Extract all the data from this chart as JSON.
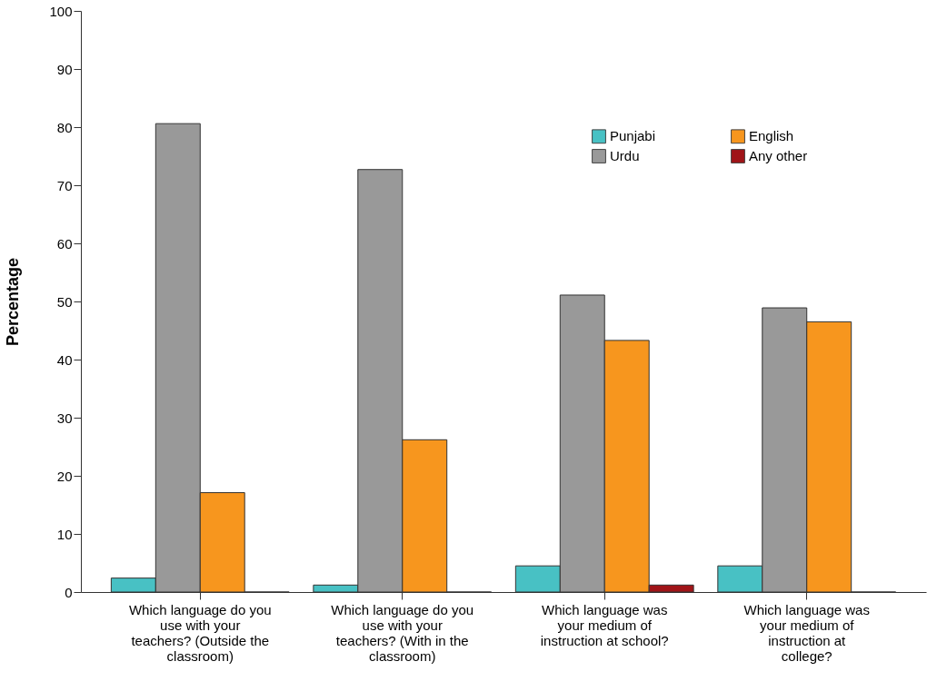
{
  "chart_data": {
    "type": "bar",
    "ylabel": "Percentage",
    "categories": [
      "Which language do you use with your teachers? (Outside the classroom)",
      "Which language do you use with your teachers? (With in the classroom)",
      "Which language was your medium of instruction at school?",
      "Which language was your medium of instruction at college?"
    ],
    "series": [
      {
        "name": "Punjabi",
        "color": "#48c1c4",
        "values": [
          2.4,
          1.2,
          4.5,
          4.5
        ]
      },
      {
        "name": "Urdu",
        "color": "#999999",
        "values": [
          80.6,
          72.7,
          51.1,
          48.9
        ]
      },
      {
        "name": "English",
        "color": "#f7961e",
        "values": [
          17.1,
          26.2,
          43.3,
          46.5
        ]
      },
      {
        "name": "Any other",
        "color": "#a01418",
        "values": [
          0,
          0,
          1.2,
          0
        ]
      }
    ],
    "ylim": [
      0,
      100
    ],
    "yticks": [
      0,
      10,
      20,
      30,
      40,
      50,
      60,
      70,
      80,
      90,
      100
    ],
    "grid": false,
    "legend": "top right"
  }
}
